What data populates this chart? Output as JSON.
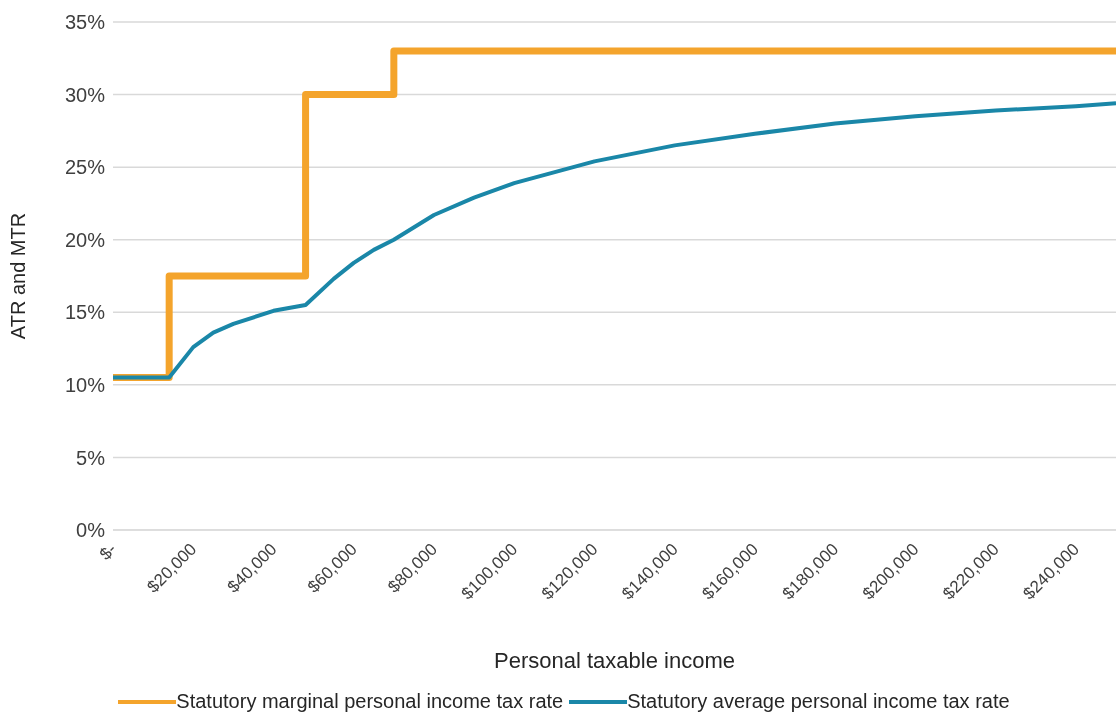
{
  "chart_data": {
    "type": "line",
    "xlabel": "Personal taxable income",
    "ylabel": "ATR and MTR",
    "xlim": [
      0,
      250000
    ],
    "xticks": [
      {
        "value": 0,
        "label": "$-"
      },
      {
        "value": 20000,
        "label": "$20,000"
      },
      {
        "value": 40000,
        "label": "$40,000"
      },
      {
        "value": 60000,
        "label": "$60,000"
      },
      {
        "value": 80000,
        "label": "$80,000"
      },
      {
        "value": 100000,
        "label": "$100,000"
      },
      {
        "value": 120000,
        "label": "$120,000"
      },
      {
        "value": 140000,
        "label": "$140,000"
      },
      {
        "value": 160000,
        "label": "$160,000"
      },
      {
        "value": 180000,
        "label": "$180,000"
      },
      {
        "value": 200000,
        "label": "$200,000"
      },
      {
        "value": 220000,
        "label": "$220,000"
      },
      {
        "value": 240000,
        "label": "$240,000"
      }
    ],
    "ylim": [
      0,
      35
    ],
    "yticks": [
      {
        "value": 0,
        "label": "0%"
      },
      {
        "value": 5,
        "label": "5%"
      },
      {
        "value": 10,
        "label": "10%"
      },
      {
        "value": 15,
        "label": "15%"
      },
      {
        "value": 20,
        "label": "20%"
      },
      {
        "value": 25,
        "label": "25%"
      },
      {
        "value": 30,
        "label": "30%"
      },
      {
        "value": 35,
        "label": "35%"
      }
    ],
    "grid": "y",
    "legend": "bottom",
    "marker": "none",
    "line_style": "solid",
    "series": [
      {
        "name": "Statutory marginal personal income tax rate",
        "type": "step",
        "color": "#f4a42c",
        "x": [
          0,
          14000,
          48000,
          70000,
          250000
        ],
        "values": [
          10.5,
          17.5,
          30,
          33,
          33
        ]
      },
      {
        "name": "Statutory average personal income tax rate",
        "type": "line",
        "color": "#1a87a8",
        "x": [
          0,
          14000,
          20000,
          25000,
          30000,
          40000,
          48000,
          55000,
          60000,
          65000,
          70000,
          80000,
          90000,
          100000,
          120000,
          140000,
          160000,
          180000,
          200000,
          220000,
          240000,
          250000
        ],
        "values": [
          10.5,
          10.5,
          12.6,
          13.6,
          14.2,
          15.1,
          15.5,
          17.3,
          18.4,
          19.3,
          20.0,
          21.7,
          22.9,
          23.9,
          25.4,
          26.5,
          27.3,
          28.0,
          28.5,
          28.9,
          29.2,
          29.4
        ]
      }
    ]
  }
}
